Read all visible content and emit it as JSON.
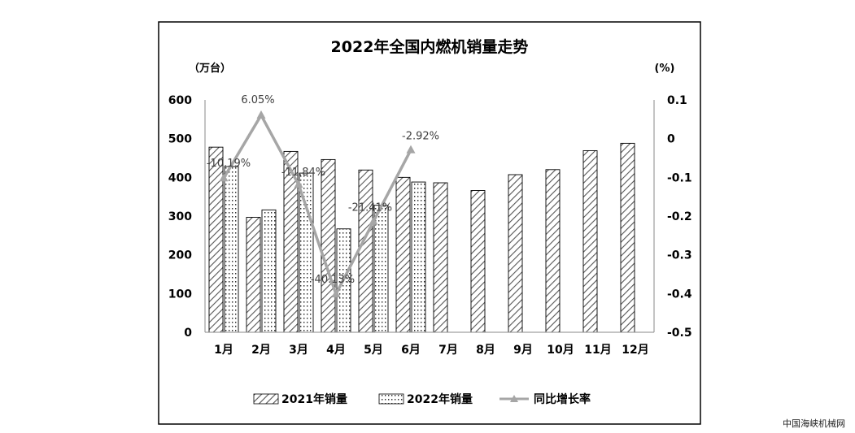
{
  "chart_data": {
    "type": "bar",
    "title": "2022年全国内燃机销量走势",
    "left_axis_unit": "（万台）",
    "right_axis_unit": "(%)",
    "categories": [
      "1月",
      "2月",
      "3月",
      "4月",
      "5月",
      "6月",
      "7月",
      "8月",
      "9月",
      "10月",
      "11月",
      "12月"
    ],
    "series": [
      {
        "name": "2021年销量",
        "type": "bar",
        "pattern": "diagonal-hatch",
        "values": [
          478,
          297,
          467,
          446,
          419,
          400,
          386,
          366,
          407,
          420,
          469,
          488
        ]
      },
      {
        "name": "2022年销量",
        "type": "bar",
        "pattern": "dotted",
        "values": [
          428,
          316,
          411,
          267,
          328,
          388,
          null,
          null,
          null,
          null,
          null,
          null
        ]
      },
      {
        "name": "同比增长率",
        "type": "line",
        "axis": "right",
        "color": "#a6a6a6",
        "values": [
          -0.1019,
          0.0605,
          -0.1184,
          -0.4013,
          -0.2141,
          -0.0292,
          null,
          null,
          null,
          null,
          null,
          null
        ],
        "labels": [
          "-10.19%",
          "6.05%",
          "-11.84%",
          "-40.13%",
          "-21.41%",
          "-2.92%",
          "",
          "",
          "",
          "",
          "",
          ""
        ]
      }
    ],
    "left_ylim": [
      0,
      600
    ],
    "left_ticks": [
      "0",
      "100",
      "200",
      "300",
      "400",
      "500",
      "600"
    ],
    "right_ylim": [
      -0.5,
      0.1
    ],
    "right_ticks": [
      "-0.5",
      "-0.4",
      "-0.3",
      "-0.2",
      "-0.1",
      "0",
      "0.1"
    ],
    "grid": false,
    "legend_position": "bottom"
  },
  "watermark": "中国海峡机械网"
}
